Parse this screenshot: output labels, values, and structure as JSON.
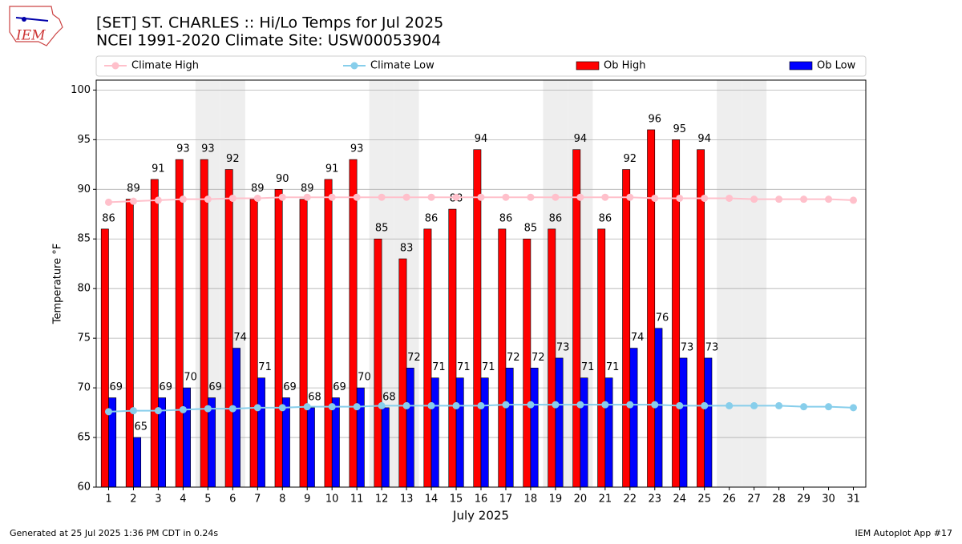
{
  "chart_data": {
    "type": "bar",
    "title": "[SET] ST. CHARLES :: Hi/Lo Temps for Jul 2025",
    "subtitle": "NCEI 1991-2020 Climate Site: USW00053904",
    "x_label": "July 2025",
    "y_label": "Temperature °F",
    "footer_left": "Generated at 25 Jul 2025 1:36 PM CDT in 0.24s",
    "footer_right": "IEM Autoplot App #17",
    "logo": "IEM",
    "categories": [
      "1",
      "2",
      "3",
      "4",
      "5",
      "6",
      "7",
      "8",
      "9",
      "10",
      "11",
      "12",
      "13",
      "14",
      "15",
      "16",
      "17",
      "18",
      "19",
      "20",
      "21",
      "22",
      "23",
      "24",
      "25",
      "26",
      "27",
      "28",
      "29",
      "30",
      "31"
    ],
    "shaded": [
      "5",
      "6",
      "12",
      "13",
      "19",
      "20",
      "26",
      "27"
    ],
    "series": [
      {
        "name": "Climate High",
        "type": "line",
        "color": "#ffc0cb",
        "values": [
          88.7,
          88.8,
          88.9,
          89.0,
          89.0,
          89.1,
          89.1,
          89.2,
          89.2,
          89.2,
          89.2,
          89.2,
          89.2,
          89.2,
          89.2,
          89.2,
          89.2,
          89.2,
          89.2,
          89.2,
          89.2,
          89.2,
          89.1,
          89.1,
          89.1,
          89.1,
          89.0,
          89.0,
          89.0,
          89.0,
          88.9
        ]
      },
      {
        "name": "Climate Low",
        "type": "line",
        "color": "#87ceeb",
        "values": [
          67.6,
          67.7,
          67.7,
          67.8,
          67.9,
          67.9,
          68.0,
          68.0,
          68.1,
          68.1,
          68.1,
          68.2,
          68.2,
          68.2,
          68.2,
          68.2,
          68.3,
          68.3,
          68.3,
          68.3,
          68.3,
          68.3,
          68.3,
          68.2,
          68.2,
          68.2,
          68.2,
          68.2,
          68.1,
          68.1,
          68.0
        ]
      },
      {
        "name": "Ob High",
        "type": "bar",
        "color": "#ff0000",
        "values": [
          86,
          89,
          91,
          93,
          93,
          92,
          89,
          90,
          89,
          91,
          93,
          85,
          83,
          86,
          88,
          94,
          86,
          85,
          86,
          94,
          86,
          92,
          96,
          95,
          94,
          null,
          null,
          null,
          null,
          null,
          null
        ]
      },
      {
        "name": "Ob Low",
        "type": "bar",
        "color": "#0000ff",
        "values": [
          69,
          65,
          69,
          70,
          69,
          74,
          71,
          69,
          68,
          69,
          70,
          68,
          72,
          71,
          71,
          71,
          72,
          72,
          73,
          71,
          71,
          74,
          76,
          73,
          73,
          null,
          null,
          null,
          null,
          null,
          null
        ]
      }
    ],
    "ylim": [
      60,
      101
    ],
    "yticks": [
      60,
      65,
      70,
      75,
      80,
      85,
      90,
      95,
      100
    ],
    "grid": true
  }
}
